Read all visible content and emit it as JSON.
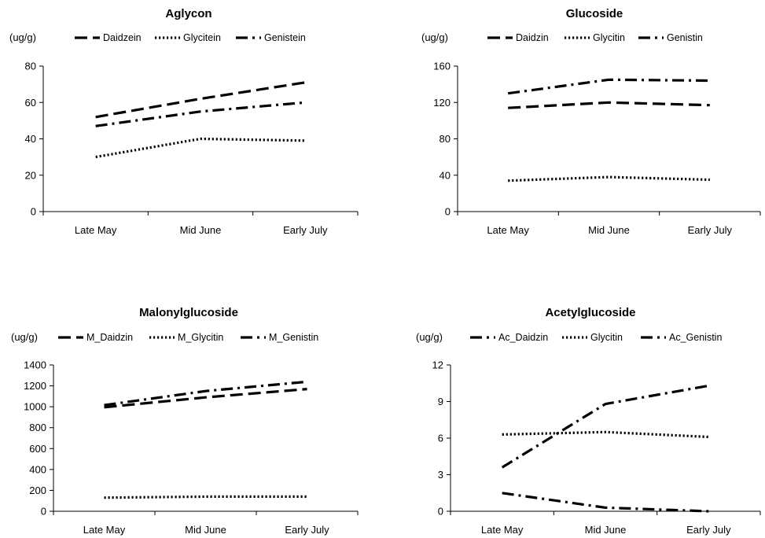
{
  "chart_data": [
    {
      "type": "line",
      "title": "Aglycon",
      "ylabel": "(ug/g)",
      "categories": [
        "Late May",
        "Mid June",
        "Early July"
      ],
      "ylim": [
        0,
        80
      ],
      "yticks": [
        "0",
        "20",
        "40",
        "60",
        "80"
      ],
      "grid": false,
      "legend_position": "top",
      "series": [
        {
          "name": "Daidzein",
          "style": "dash",
          "values": [
            52,
            62,
            71
          ]
        },
        {
          "name": "Glycitein",
          "style": "dot",
          "values": [
            30,
            40,
            39
          ]
        },
        {
          "name": "Genistein",
          "style": "dashdot",
          "values": [
            47,
            55,
            60
          ]
        }
      ]
    },
    {
      "type": "line",
      "title": "Glucoside",
      "ylabel": "(ug/g)",
      "categories": [
        "Late May",
        "Mid June",
        "Early July"
      ],
      "ylim": [
        0,
        160
      ],
      "yticks": [
        "0",
        "40",
        "80",
        "120",
        "160"
      ],
      "grid": false,
      "legend_position": "top",
      "series": [
        {
          "name": "Daidzin",
          "style": "dash",
          "values": [
            114,
            120,
            117
          ]
        },
        {
          "name": "Glycitin",
          "style": "dot",
          "values": [
            34,
            38,
            35
          ]
        },
        {
          "name": "Genistin",
          "style": "dashdot",
          "values": [
            130,
            145,
            144
          ]
        }
      ]
    },
    {
      "type": "line",
      "title": "Malonylglucoside",
      "ylabel": "(ug/g)",
      "categories": [
        "Late May",
        "Mid June",
        "Early July"
      ],
      "ylim": [
        0,
        1400
      ],
      "yticks": [
        "0",
        "200",
        "400",
        "600",
        "800",
        "1000",
        "1200",
        "1400"
      ],
      "grid": false,
      "legend_position": "top",
      "series": [
        {
          "name": "M_Daidzin",
          "style": "dash",
          "values": [
            995,
            1090,
            1170
          ]
        },
        {
          "name": "M_Glycitin",
          "style": "dot",
          "values": [
            130,
            140,
            140
          ]
        },
        {
          "name": "M_Genistin",
          "style": "dashdot",
          "values": [
            1015,
            1150,
            1240
          ]
        }
      ]
    },
    {
      "type": "line",
      "title": "Acetylglucoside",
      "ylabel": "(ug/g)",
      "categories": [
        "Late May",
        "Mid June",
        "Early July"
      ],
      "ylim": [
        0,
        12
      ],
      "yticks": [
        "0",
        "3",
        "6",
        "9",
        "12"
      ],
      "grid": false,
      "legend_position": "top",
      "series": [
        {
          "name": "Ac_Daidzin",
          "style": "dashdot",
          "values": [
            1.5,
            0.3,
            0.0
          ]
        },
        {
          "name": "Glycitin",
          "style": "dot",
          "values": [
            6.3,
            6.5,
            6.1
          ]
        },
        {
          "name": "Ac_Genistin",
          "style": "dashdot",
          "values": [
            3.6,
            8.8,
            10.3
          ]
        }
      ]
    }
  ]
}
